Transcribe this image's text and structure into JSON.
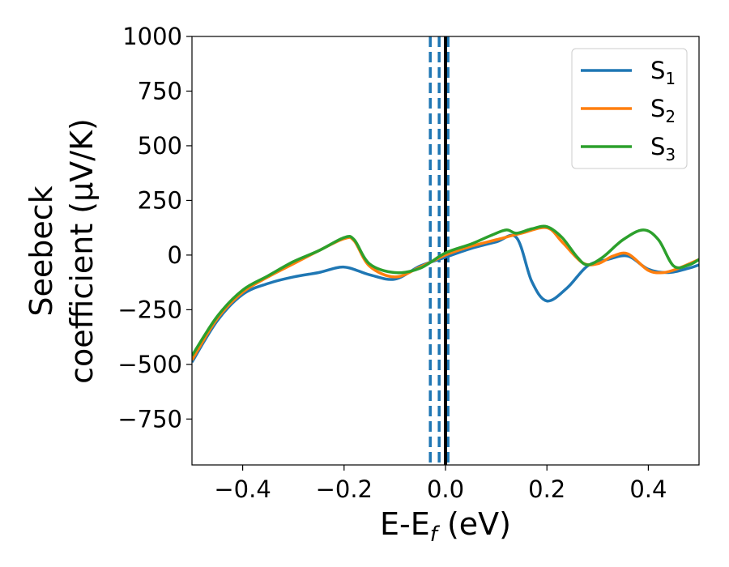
{
  "chart_data": {
    "type": "line",
    "xlabel": {
      "main": "E-E",
      "sub": "f",
      "unit": " (eV)"
    },
    "ylabel": {
      "line1": "Seebeck",
      "line2": "coefficient  (μV/K)"
    },
    "xlim": [
      -0.5,
      0.5
    ],
    "ylim": [
      -960,
      1000
    ],
    "x_ticks": [
      -0.4,
      -0.2,
      0.0,
      0.2,
      0.4
    ],
    "x_tick_labels": [
      "−0.4",
      "−0.2",
      "0.0",
      "0.2",
      "0.4"
    ],
    "y_ticks": [
      1000,
      750,
      500,
      250,
      0,
      -250,
      -500,
      -750
    ],
    "y_tick_labels": [
      "1000",
      "750",
      "500",
      "250",
      "0",
      "−250",
      "−500",
      "−750"
    ],
    "grid": false,
    "legend_position": "top-right",
    "series": [
      {
        "name": "S",
        "sub": "1",
        "color": "#1f77b4",
        "x": [
          -0.5,
          -0.45,
          -0.4,
          -0.35,
          -0.3,
          -0.25,
          -0.2,
          -0.15,
          -0.1,
          -0.05,
          0.0,
          0.05,
          0.1,
          0.14,
          0.17,
          0.2,
          0.24,
          0.28,
          0.32,
          0.36,
          0.4,
          0.44,
          0.48,
          0.5
        ],
        "y": [
          -490,
          -300,
          -180,
          -130,
          -100,
          -80,
          -55,
          -90,
          -110,
          -50,
          -10,
          30,
          60,
          80,
          -120,
          -210,
          -150,
          -50,
          -20,
          -5,
          -65,
          -80,
          -60,
          -45
        ]
      },
      {
        "name": "S",
        "sub": "2",
        "color": "#ff7f0e",
        "x": [
          -0.5,
          -0.45,
          -0.4,
          -0.35,
          -0.3,
          -0.25,
          -0.2,
          -0.18,
          -0.15,
          -0.1,
          -0.05,
          0.0,
          0.05,
          0.1,
          0.15,
          0.2,
          0.23,
          0.27,
          0.3,
          0.33,
          0.36,
          0.4,
          0.43,
          0.46,
          0.5
        ],
        "y": [
          -480,
          -290,
          -170,
          -100,
          -40,
          20,
          75,
          65,
          -50,
          -100,
          -55,
          0,
          40,
          70,
          100,
          125,
          60,
          -35,
          -40,
          -5,
          5,
          -70,
          -80,
          -60,
          -20
        ]
      },
      {
        "name": "S",
        "sub": "3",
        "color": "#2ca02c",
        "x": [
          -0.5,
          -0.45,
          -0.4,
          -0.35,
          -0.3,
          -0.25,
          -0.2,
          -0.18,
          -0.15,
          -0.1,
          -0.05,
          0.0,
          0.05,
          0.09,
          0.12,
          0.14,
          0.17,
          0.2,
          0.23,
          0.26,
          0.28,
          0.31,
          0.35,
          0.39,
          0.42,
          0.45,
          0.48,
          0.5
        ],
        "y": [
          -460,
          -280,
          -160,
          -95,
          -30,
          20,
          80,
          70,
          -40,
          -80,
          -60,
          10,
          50,
          90,
          115,
          100,
          120,
          130,
          80,
          -10,
          -45,
          -10,
          70,
          115,
          70,
          -50,
          -45,
          -20
        ]
      }
    ],
    "vlines": [
      {
        "x": -0.03,
        "color": "#1f77b4",
        "style": "dashed"
      },
      {
        "x": -0.0125,
        "color": "#1f77b4",
        "style": "dashed"
      },
      {
        "x": 0.005,
        "color": "#1f77b4",
        "style": "dashed"
      },
      {
        "x": 0.0,
        "color": "#000000",
        "style": "solid"
      }
    ]
  }
}
